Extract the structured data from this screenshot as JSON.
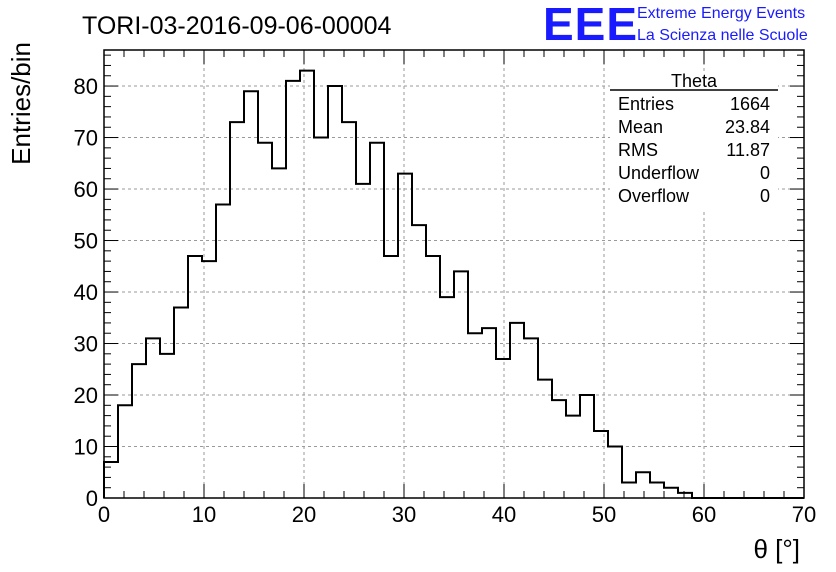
{
  "chart_data": {
    "type": "histogram",
    "title": "TORI-03-2016-09-06-00004",
    "xlabel": "θ [°]",
    "ylabel": "Entries/bin",
    "xlim": [
      0,
      70
    ],
    "ylim": [
      0,
      87
    ],
    "x_ticks": [
      0,
      10,
      20,
      30,
      40,
      50,
      60,
      70
    ],
    "y_ticks": [
      0,
      10,
      20,
      30,
      40,
      50,
      60,
      70,
      80
    ],
    "grid": true,
    "bin_width": 1.4,
    "values": [
      7,
      18,
      26,
      31,
      28,
      37,
      47,
      46,
      57,
      73,
      79,
      69,
      64,
      81,
      83,
      70,
      80,
      73,
      61,
      69,
      47,
      63,
      53,
      47,
      39,
      44,
      32,
      33,
      27,
      34,
      31,
      23,
      19,
      16,
      20,
      13,
      10,
      3,
      5,
      3,
      2,
      1,
      0,
      0,
      0,
      0,
      0,
      0,
      0,
      0
    ]
  },
  "stats_box": {
    "name": "Theta",
    "rows": [
      {
        "label": "Entries",
        "value": "1664"
      },
      {
        "label": "Mean",
        "value": "23.84"
      },
      {
        "label": "RMS",
        "value": "11.87"
      },
      {
        "label": "Underflow",
        "value": "0"
      },
      {
        "label": "Overflow",
        "value": "0"
      }
    ]
  },
  "logo": {
    "mark": "EEE",
    "line1": "Extreme Energy Events",
    "line2": "La Scienza nelle Scuole",
    "color": "#1a1aff"
  }
}
